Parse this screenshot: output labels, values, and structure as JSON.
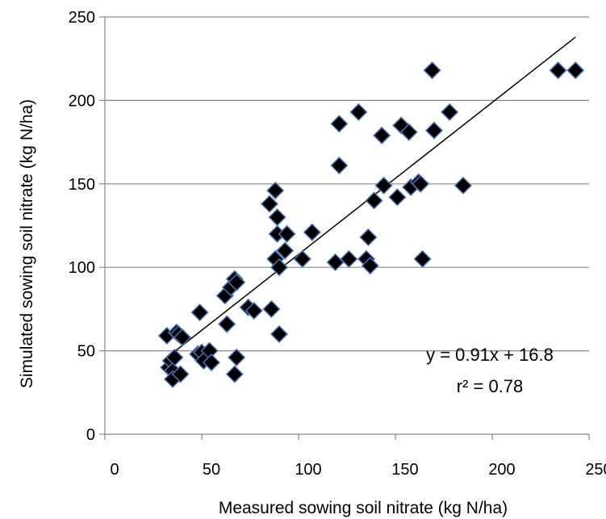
{
  "chart_data": {
    "type": "scatter",
    "title": "",
    "xlabel": "Measured sowing soil nitrate (kg N/ha)",
    "ylabel": "Simulated sowing soil nitrate (kg N/ha)",
    "xlim": [
      0,
      250
    ],
    "ylim": [
      0,
      250
    ],
    "xticks": [
      "0",
      "50",
      "100",
      "150",
      "200",
      "250"
    ],
    "yticks": [
      "0",
      "50",
      "100",
      "150",
      "200",
      "250"
    ],
    "grid": "horizontal",
    "marker": "diamond",
    "colors": {
      "marker_fill": "#000000",
      "marker_edge": "#4a73b8",
      "gridline": "#888888",
      "trendline": "#000000"
    },
    "points": [
      [
        32,
        59
      ],
      [
        33,
        40
      ],
      [
        34,
        44
      ],
      [
        35,
        38
      ],
      [
        35,
        33
      ],
      [
        36,
        46
      ],
      [
        37,
        61
      ],
      [
        38,
        60
      ],
      [
        39,
        36
      ],
      [
        40,
        58
      ],
      [
        48,
        48
      ],
      [
        49,
        73
      ],
      [
        50,
        49
      ],
      [
        51,
        44
      ],
      [
        54,
        50
      ],
      [
        55,
        43
      ],
      [
        62,
        83
      ],
      [
        63,
        66
      ],
      [
        65,
        88
      ],
      [
        67,
        36
      ],
      [
        67,
        93
      ],
      [
        68,
        91
      ],
      [
        68,
        46
      ],
      [
        74,
        76
      ],
      [
        77,
        74
      ],
      [
        85,
        138
      ],
      [
        86,
        75
      ],
      [
        88,
        105
      ],
      [
        88,
        146
      ],
      [
        89,
        120
      ],
      [
        89,
        130
      ],
      [
        90,
        60
      ],
      [
        90,
        100
      ],
      [
        93,
        110
      ],
      [
        94,
        120
      ],
      [
        102,
        105
      ],
      [
        107,
        121
      ],
      [
        119,
        103
      ],
      [
        121,
        161
      ],
      [
        121,
        186
      ],
      [
        126,
        105
      ],
      [
        131,
        193
      ],
      [
        135,
        105
      ],
      [
        136,
        118
      ],
      [
        137,
        101
      ],
      [
        139,
        140
      ],
      [
        143,
        179
      ],
      [
        144,
        149
      ],
      [
        151,
        142
      ],
      [
        153,
        185
      ],
      [
        157,
        181
      ],
      [
        158,
        148
      ],
      [
        162,
        151
      ],
      [
        163,
        150
      ],
      [
        164,
        105
      ],
      [
        169,
        218
      ],
      [
        170,
        182
      ],
      [
        178,
        193
      ],
      [
        185,
        149
      ],
      [
        234,
        218
      ],
      [
        243,
        218
      ]
    ],
    "trendline": {
      "slope": 0.91,
      "intercept": 16.8,
      "x_start": 35,
      "x_end": 243
    },
    "annotations": {
      "equation": "y = 0.91x + 16.8",
      "r2": "r² = 0.78"
    }
  }
}
